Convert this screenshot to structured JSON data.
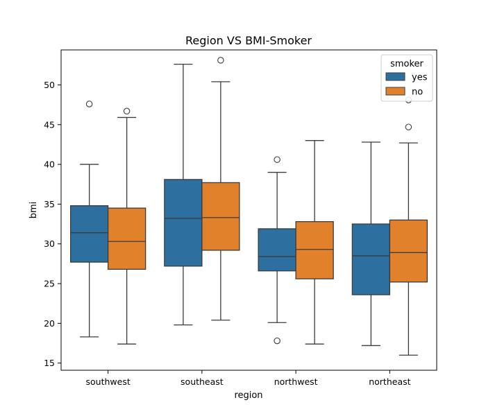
{
  "chart_data": {
    "type": "box",
    "title": "Region VS BMI-Smoker",
    "xlabel": "region",
    "ylabel": "bmi",
    "ylim": [
      14.1,
      54.4
    ],
    "yticks": [
      15,
      20,
      25,
      30,
      35,
      40,
      45,
      50
    ],
    "categories": [
      "southwest",
      "southeast",
      "northwest",
      "northeast"
    ],
    "legend": {
      "title": "smoker",
      "placement": "top-right"
    },
    "grid": false,
    "series": [
      {
        "name": "yes",
        "color": "#2d6f9f",
        "boxes": [
          {
            "whisker_low": 18.3,
            "q1": 27.7,
            "median": 31.4,
            "q3": 34.8,
            "whisker_high": 40.0,
            "outliers": [
              47.6
            ]
          },
          {
            "whisker_low": 19.8,
            "q1": 27.2,
            "median": 33.2,
            "q3": 38.1,
            "whisker_high": 52.6,
            "outliers": []
          },
          {
            "whisker_low": 20.1,
            "q1": 26.6,
            "median": 28.4,
            "q3": 31.9,
            "whisker_high": 39.0,
            "outliers": [
              17.8,
              40.6
            ]
          },
          {
            "whisker_low": 17.2,
            "q1": 23.6,
            "median": 28.5,
            "q3": 32.5,
            "whisker_high": 42.8,
            "outliers": []
          }
        ]
      },
      {
        "name": "no",
        "color": "#e1812c",
        "boxes": [
          {
            "whisker_low": 17.4,
            "q1": 26.8,
            "median": 30.3,
            "q3": 34.5,
            "whisker_high": 45.9,
            "outliers": [
              46.7
            ]
          },
          {
            "whisker_low": 20.4,
            "q1": 29.2,
            "median": 33.3,
            "q3": 37.7,
            "whisker_high": 50.4,
            "outliers": [
              53.1
            ]
          },
          {
            "whisker_low": 17.4,
            "q1": 25.6,
            "median": 29.3,
            "q3": 32.8,
            "whisker_high": 43.0,
            "outliers": []
          },
          {
            "whisker_low": 16.0,
            "q1": 25.2,
            "median": 28.9,
            "q3": 33.0,
            "whisker_high": 42.7,
            "outliers": [
              44.7,
              48.1
            ]
          }
        ]
      }
    ]
  }
}
